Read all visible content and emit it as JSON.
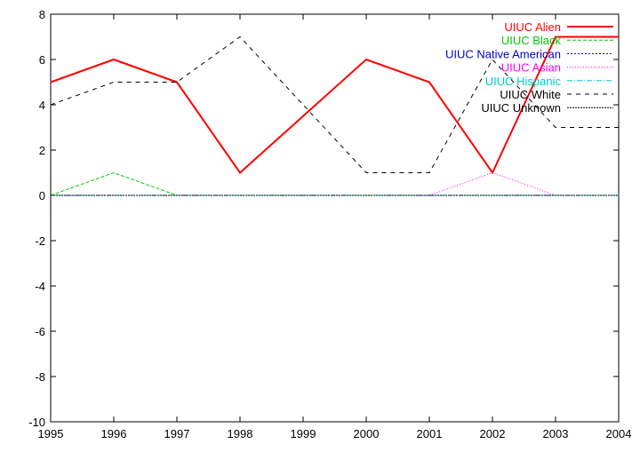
{
  "chart_data": {
    "type": "line",
    "x": [
      "1995",
      "1996",
      "1997",
      "1998",
      "1999",
      "2000",
      "2001",
      "2002",
      "2003",
      "2004"
    ],
    "xlim": [
      1995,
      2004
    ],
    "ylim": [
      -10,
      8
    ],
    "yticks": [
      -10,
      -8,
      -6,
      -4,
      -2,
      0,
      2,
      4,
      6,
      8
    ],
    "legend": "top-right",
    "grid": false,
    "series": [
      {
        "name": "UIUC Alien",
        "color": "#ff0000",
        "dash": "solid",
        "width": 2,
        "values": [
          5,
          6,
          5,
          1,
          3.5,
          6,
          5,
          1,
          7,
          7
        ]
      },
      {
        "name": "UIUC Black",
        "color": "#00cc00",
        "dash": "dashed",
        "width": 1,
        "values": [
          0,
          1,
          0,
          0,
          0,
          0,
          0,
          0,
          0,
          0
        ]
      },
      {
        "name": "UIUC Native American",
        "color": "#0000cc",
        "dash": "dotted",
        "width": 1,
        "values": [
          0,
          0,
          0,
          0,
          0,
          0,
          0,
          0,
          0,
          0
        ]
      },
      {
        "name": "UIUC Asian",
        "color": "#ff00ff",
        "dash": "finedot",
        "width": 1,
        "values": [
          0,
          0,
          0,
          0,
          0,
          0,
          0,
          1,
          0,
          0
        ]
      },
      {
        "name": "UIUC Hispanic",
        "color": "#00cccc",
        "dash": "dashdot",
        "width": 1,
        "values": [
          0,
          0,
          0,
          0,
          0,
          0,
          0,
          0,
          0,
          0
        ]
      },
      {
        "name": "UIUC White",
        "color": "#000000",
        "dash": "longdash",
        "width": 1,
        "values": [
          4,
          5,
          5,
          7,
          4,
          1,
          1,
          6,
          3,
          3
        ]
      },
      {
        "name": "UIUC Unknown",
        "color": "#000000",
        "dash": "densedot",
        "width": 1,
        "values": [
          0,
          0,
          0,
          0,
          0,
          0,
          0,
          0,
          0,
          0
        ]
      }
    ]
  }
}
